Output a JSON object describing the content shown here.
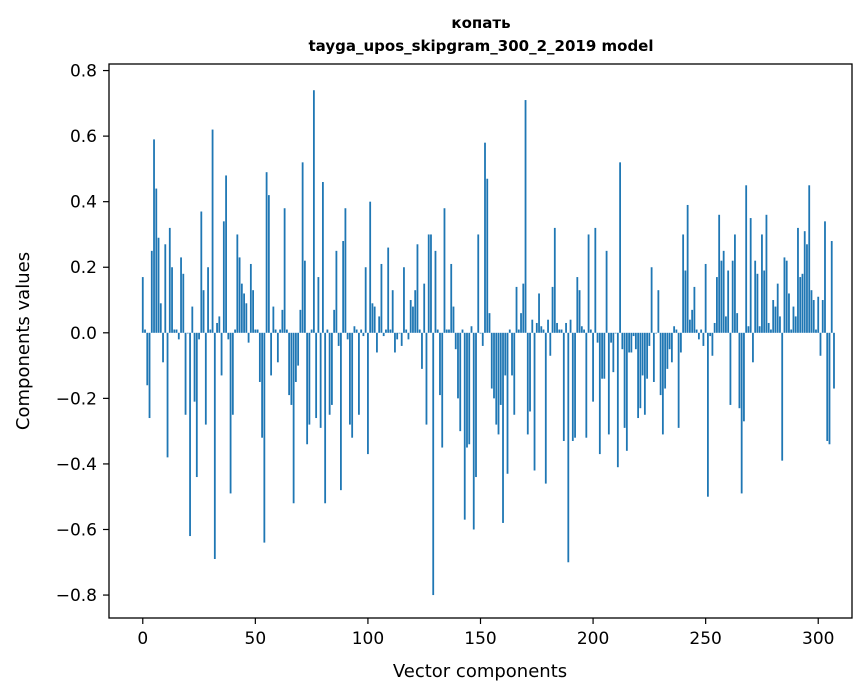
{
  "chart_data": {
    "type": "bar",
    "title_line1": "копать",
    "title_line2": "tayga_upos_skipgram_300_2_2019 model",
    "xlabel": "Vector components",
    "ylabel": "Components values",
    "xlim": [
      -15,
      315
    ],
    "ylim": [
      -0.87,
      0.82
    ],
    "xticks": [
      0,
      50,
      100,
      150,
      200,
      250,
      300
    ],
    "xtick_labels": [
      "0",
      "50",
      "100",
      "150",
      "200",
      "250",
      "300"
    ],
    "yticks": [
      -0.8,
      -0.6,
      -0.4,
      -0.2,
      0.0,
      0.2,
      0.4,
      0.6,
      0.8
    ],
    "ytick_labels": [
      "−0.8",
      "−0.6",
      "−0.4",
      "−0.2",
      "0.0",
      "0.2",
      "0.4",
      "0.6",
      "0.8"
    ],
    "bar_color": "#1f77b4",
    "grid": false,
    "values": [
      0.17,
      0.01,
      -0.16,
      -0.26,
      0.25,
      0.59,
      0.44,
      0.29,
      0.09,
      -0.09,
      0.27,
      -0.38,
      0.32,
      0.2,
      0.01,
      0.01,
      -0.02,
      0.23,
      0.18,
      -0.25,
      0.0,
      -0.62,
      0.08,
      -0.21,
      -0.44,
      -0.02,
      0.37,
      0.13,
      -0.28,
      0.2,
      0.01,
      0.62,
      -0.69,
      0.03,
      0.05,
      -0.13,
      0.34,
      0.48,
      -0.02,
      -0.49,
      -0.25,
      0.01,
      0.3,
      0.23,
      0.15,
      0.12,
      0.09,
      -0.03,
      0.21,
      0.13,
      0.01,
      0.01,
      -0.15,
      -0.32,
      -0.64,
      0.49,
      0.42,
      -0.13,
      0.08,
      0.01,
      -0.09,
      0.01,
      0.07,
      0.38,
      0.01,
      -0.19,
      -0.22,
      -0.52,
      -0.15,
      -0.1,
      0.07,
      0.52,
      0.22,
      -0.34,
      -0.28,
      0.01,
      0.74,
      -0.26,
      0.17,
      -0.29,
      0.46,
      -0.52,
      0.01,
      -0.25,
      -0.22,
      0.07,
      0.25,
      -0.04,
      -0.48,
      0.28,
      0.38,
      -0.02,
      -0.28,
      -0.32,
      0.02,
      0.01,
      -0.25,
      0.01,
      -0.01,
      0.2,
      -0.37,
      0.4,
      0.09,
      0.08,
      -0.06,
      0.05,
      0.21,
      -0.01,
      0.01,
      0.26,
      0.01,
      0.13,
      -0.06,
      -0.02,
      0.0,
      -0.04,
      0.2,
      0.01,
      -0.02,
      0.1,
      0.08,
      0.13,
      0.27,
      0.01,
      -0.11,
      0.15,
      -0.28,
      0.3,
      0.3,
      -0.8,
      0.25,
      0.01,
      -0.19,
      -0.35,
      0.38,
      0.01,
      0.01,
      0.21,
      0.08,
      -0.05,
      -0.2,
      -0.3,
      0.01,
      -0.57,
      -0.35,
      -0.34,
      0.02,
      -0.6,
      -0.44,
      0.3,
      0.0,
      -0.04,
      0.58,
      0.47,
      0.06,
      -0.17,
      -0.2,
      -0.28,
      -0.31,
      -0.22,
      -0.58,
      -0.13,
      -0.43,
      0.01,
      -0.13,
      -0.25,
      0.14,
      0.01,
      0.06,
      0.15,
      0.71,
      -0.31,
      -0.24,
      0.04,
      -0.42,
      0.03,
      0.12,
      0.02,
      0.01,
      -0.46,
      0.04,
      -0.07,
      0.14,
      0.32,
      0.03,
      0.01,
      0.01,
      -0.33,
      0.03,
      -0.7,
      0.04,
      -0.33,
      -0.32,
      0.17,
      0.13,
      0.02,
      0.01,
      -0.32,
      0.3,
      0.01,
      -0.21,
      0.32,
      -0.03,
      -0.37,
      -0.14,
      -0.14,
      0.25,
      -0.31,
      -0.03,
      -0.12,
      0.0,
      -0.41,
      0.52,
      -0.05,
      -0.29,
      -0.36,
      -0.06,
      -0.06,
      -0.01,
      -0.05,
      -0.26,
      -0.23,
      -0.13,
      -0.25,
      -0.14,
      -0.04,
      0.2,
      -0.15,
      0.0,
      0.13,
      -0.19,
      -0.31,
      -0.17,
      -0.11,
      -0.05,
      -0.09,
      0.02,
      0.01,
      -0.29,
      -0.06,
      0.3,
      0.19,
      0.39,
      0.04,
      0.07,
      0.14,
      0.01,
      -0.02,
      0.01,
      -0.04,
      0.21,
      -0.5,
      -0.01,
      -0.07,
      0.03,
      0.17,
      0.36,
      0.22,
      0.25,
      0.05,
      0.19,
      -0.22,
      0.22,
      0.3,
      0.06,
      -0.23,
      -0.49,
      -0.27,
      0.45,
      0.02,
      0.35,
      -0.09,
      0.22,
      0.18,
      0.02,
      0.3,
      0.19,
      0.36,
      0.03,
      0.01,
      0.1,
      0.08,
      0.15,
      0.05,
      -0.39,
      0.23,
      0.22,
      0.12,
      0.01,
      0.08,
      0.05,
      0.32,
      0.17,
      0.18,
      0.31,
      0.27,
      0.45,
      0.13,
      0.1,
      0.01,
      0.11,
      -0.07,
      0.1,
      0.34,
      -0.33,
      -0.34,
      0.28,
      -0.17
    ]
  }
}
